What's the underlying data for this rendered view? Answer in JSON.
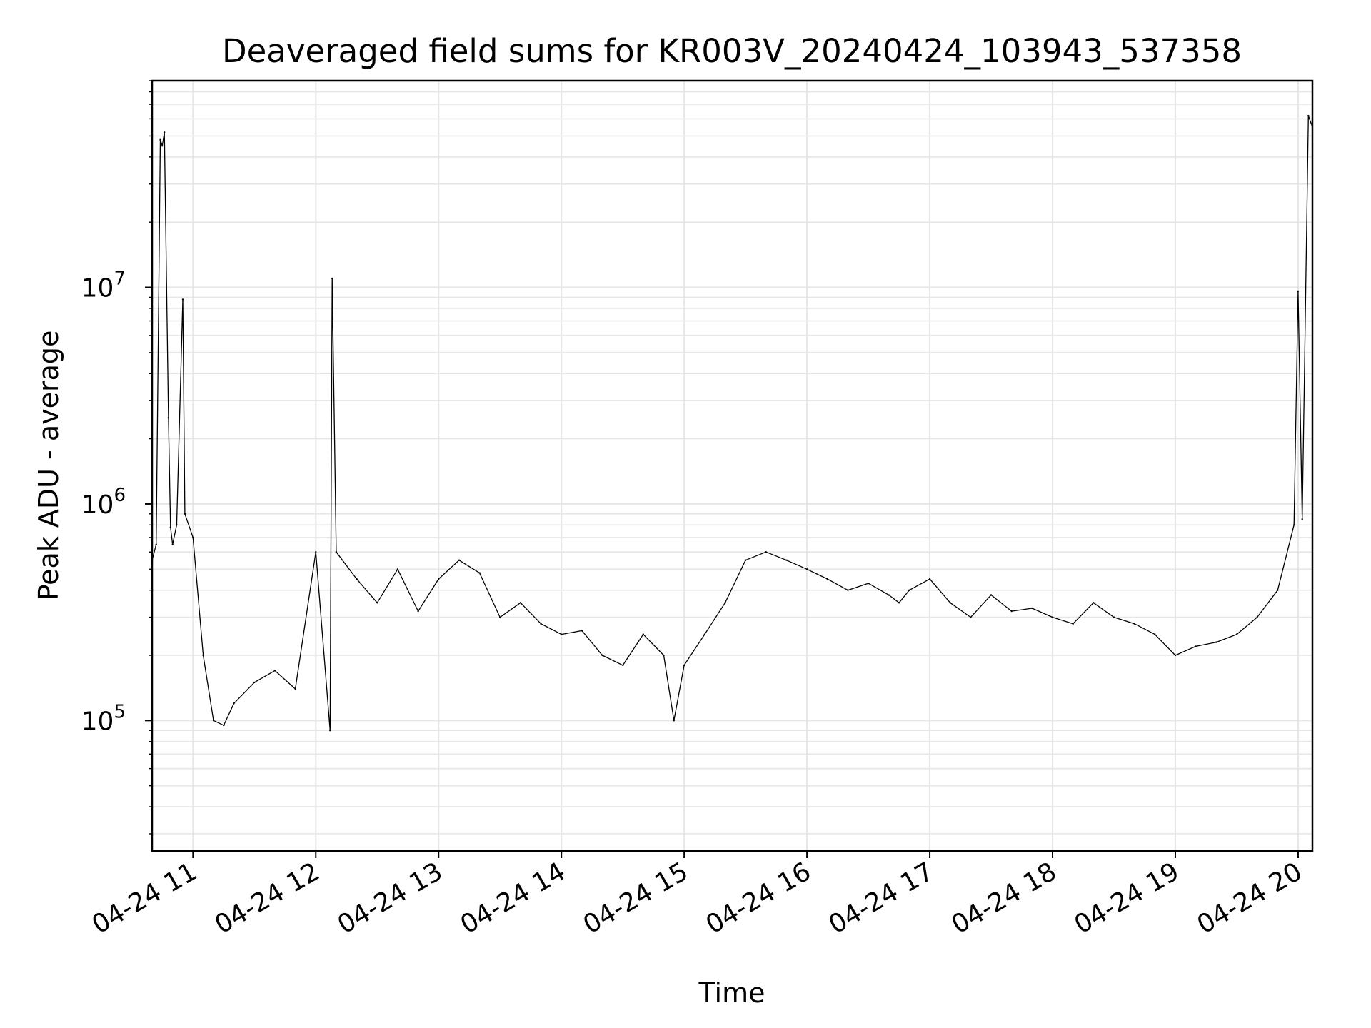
{
  "chart_data": {
    "type": "line",
    "title": "Deaveraged field sums for KR003V_20240424_103943_537358",
    "xlabel": "Time",
    "ylabel": "Peak ADU - average",
    "x_scale": "time",
    "y_scale": "log",
    "xlim": [
      "2024-04-24 10:40",
      "2024-04-24 20:07"
    ],
    "ylim": [
      25000,
      90000000
    ],
    "x_ticks": [
      "04-24 11",
      "04-24 12",
      "04-24 13",
      "04-24 14",
      "04-24 15",
      "04-24 16",
      "04-24 17",
      "04-24 18",
      "04-24 19",
      "04-24 20"
    ],
    "y_ticks": [
      {
        "base": "10",
        "exp": "5",
        "value": 100000
      },
      {
        "base": "10",
        "exp": "6",
        "value": 1000000
      },
      {
        "base": "10",
        "exp": "7",
        "value": 10000000
      }
    ],
    "grid": true,
    "line_color": "#000000",
    "grid_color": "#e6e6e6",
    "series": [
      {
        "x": [
          "2024-04-24 10:40",
          "2024-04-24 10:42",
          "2024-04-24 10:44",
          "2024-04-24 10:45",
          "2024-04-24 10:46",
          "2024-04-24 10:48",
          "2024-04-24 10:49",
          "2024-04-24 10:50",
          "2024-04-24 10:52",
          "2024-04-24 10:55",
          "2024-04-24 10:56",
          "2024-04-24 11:00",
          "2024-04-24 11:05",
          "2024-04-24 11:10",
          "2024-04-24 11:15",
          "2024-04-24 11:20",
          "2024-04-24 11:30",
          "2024-04-24 11:40",
          "2024-04-24 11:50",
          "2024-04-24 12:00",
          "2024-04-24 12:07",
          "2024-04-24 12:08",
          "2024-04-24 12:10",
          "2024-04-24 12:20",
          "2024-04-24 12:30",
          "2024-04-24 12:40",
          "2024-04-24 12:50",
          "2024-04-24 13:00",
          "2024-04-24 13:10",
          "2024-04-24 13:20",
          "2024-04-24 13:30",
          "2024-04-24 13:40",
          "2024-04-24 13:50",
          "2024-04-24 14:00",
          "2024-04-24 14:10",
          "2024-04-24 14:20",
          "2024-04-24 14:30",
          "2024-04-24 14:40",
          "2024-04-24 14:50",
          "2024-04-24 14:55",
          "2024-04-24 15:00",
          "2024-04-24 15:10",
          "2024-04-24 15:20",
          "2024-04-24 15:30",
          "2024-04-24 15:40",
          "2024-04-24 15:50",
          "2024-04-24 16:00",
          "2024-04-24 16:10",
          "2024-04-24 16:20",
          "2024-04-24 16:30",
          "2024-04-24 16:40",
          "2024-04-24 16:45",
          "2024-04-24 16:50",
          "2024-04-24 17:00",
          "2024-04-24 17:10",
          "2024-04-24 17:20",
          "2024-04-24 17:30",
          "2024-04-24 17:40",
          "2024-04-24 17:50",
          "2024-04-24 18:00",
          "2024-04-24 18:10",
          "2024-04-24 18:20",
          "2024-04-24 18:30",
          "2024-04-24 18:40",
          "2024-04-24 18:50",
          "2024-04-24 19:00",
          "2024-04-24 19:10",
          "2024-04-24 19:20",
          "2024-04-24 19:30",
          "2024-04-24 19:40",
          "2024-04-24 19:50",
          "2024-04-24 19:58",
          "2024-04-24 20:00",
          "2024-04-24 20:02",
          "2024-04-24 20:05",
          "2024-04-24 20:07"
        ],
        "y": [
          550000,
          650000,
          48000000,
          45000000,
          52000000,
          2500000,
          780000,
          650000,
          800000,
          8800000,
          900000,
          700000,
          200000,
          100000,
          95000,
          120000,
          150000,
          170000,
          140000,
          600000,
          90000,
          11000000,
          600000,
          450000,
          350000,
          500000,
          320000,
          450000,
          550000,
          480000,
          300000,
          350000,
          280000,
          250000,
          260000,
          200000,
          180000,
          250000,
          200000,
          100000,
          180000,
          250000,
          350000,
          550000,
          600000,
          550000,
          500000,
          450000,
          400000,
          430000,
          380000,
          350000,
          400000,
          450000,
          350000,
          300000,
          380000,
          320000,
          330000,
          300000,
          280000,
          350000,
          300000,
          280000,
          250000,
          200000,
          220000,
          230000,
          250000,
          300000,
          400000,
          800000,
          9600000,
          850000,
          62000000,
          55000000
        ]
      }
    ]
  }
}
